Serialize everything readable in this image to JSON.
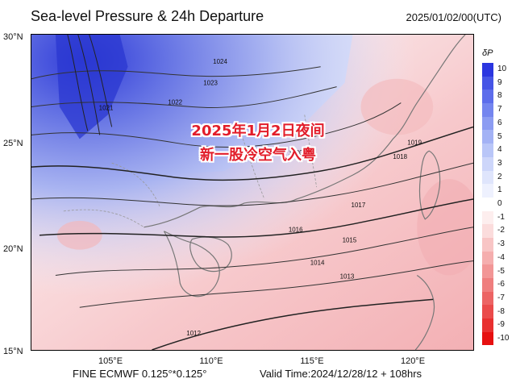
{
  "header": {
    "title": "Sea-level Pressure & 24h Departure",
    "datetime": "2025/01/02/00(UTC)"
  },
  "overlay": {
    "line1": "2025年1月2日夜间",
    "line2": "新一股冷空气入粤"
  },
  "axes": {
    "lat_ticks": [
      "30°N",
      "25°N",
      "20°N",
      "15°N"
    ],
    "lon_ticks": [
      "105°E",
      "110°E",
      "115°E",
      "120°E"
    ]
  },
  "colorbar": {
    "title": "δP",
    "levels": [
      "10",
      "9",
      "8",
      "7",
      "6",
      "5",
      "4",
      "3",
      "2",
      "1",
      "0",
      "-1",
      "-2",
      "-3",
      "-4",
      "-5",
      "-6",
      "-7",
      "-8",
      "-9",
      "-10"
    ],
    "colors": [
      "#2b36e0",
      "#4655e6",
      "#5d6deb",
      "#7485ef",
      "#8c9cf2",
      "#a3b2f5",
      "#b9c6f8",
      "#cdd6fa",
      "#dfe5fc",
      "#eef1fe",
      "#ffffff",
      "#fdeeee",
      "#fbdcdc",
      "#f8c5c5",
      "#f5aeae",
      "#f29696",
      "#ef7e7e",
      "#ec6464",
      "#ea4b4b",
      "#e83030",
      "#e61010"
    ]
  },
  "isobars": [
    "1024",
    "1023",
    "1022",
    "1021",
    "1020",
    "1019",
    "1018",
    "1017",
    "1016",
    "1015",
    "1014",
    "1013",
    "1012"
  ],
  "footer": {
    "model": "FINE ECMWF 0.125°*0.125°",
    "valid": "Valid Time:2024/12/28/12 + 108hrs"
  }
}
